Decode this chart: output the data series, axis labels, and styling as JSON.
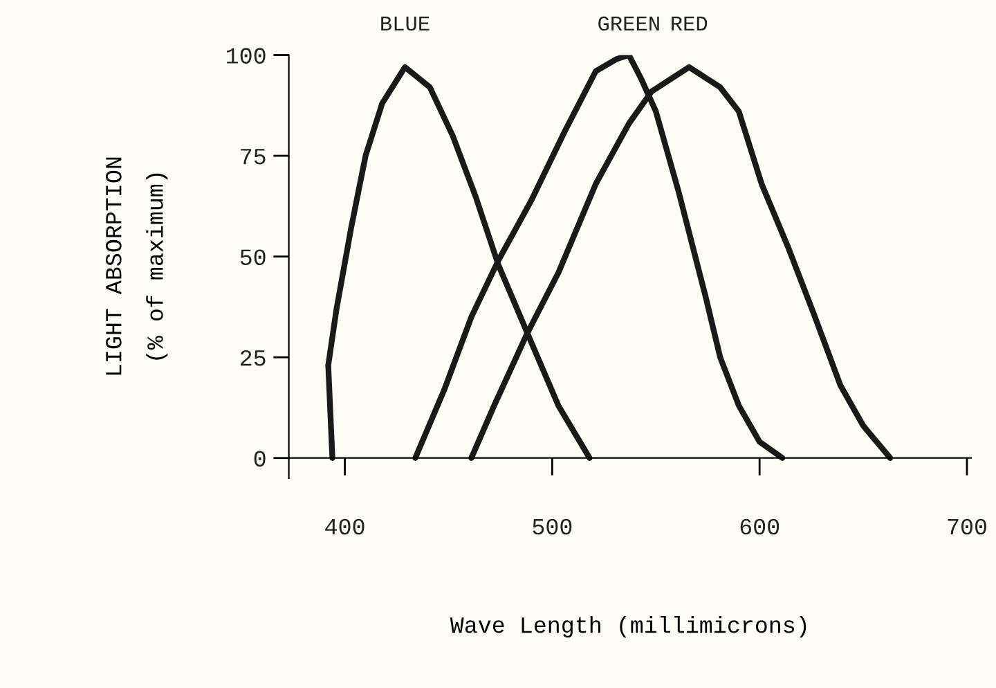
{
  "chart_data": {
    "type": "line",
    "xlabel": "Wave Length (millimicrons)",
    "ylabel": "LIGHT ABSORPTION\n(% of maximum)",
    "xlim": [
      373,
      702
    ],
    "ylim": [
      -5,
      100
    ],
    "xticks": [
      400,
      500,
      600,
      700
    ],
    "yticks": [
      0,
      25,
      50,
      75,
      100
    ],
    "legend": false,
    "marker": "none",
    "line_style": "solid",
    "series": [
      {
        "name": "BLUE",
        "color": "#1a1a1a",
        "x": [
          394,
          392,
          396,
          403,
          410,
          418,
          429,
          441,
          452,
          463,
          474,
          488,
          503,
          518
        ],
        "values": [
          0,
          23,
          37,
          57,
          75,
          88,
          97,
          92,
          80,
          65,
          48,
          31,
          13,
          0
        ]
      },
      {
        "name": "GREEN",
        "color": "#1a1a1a",
        "x": [
          434,
          448,
          461,
          474,
          490,
          506,
          521,
          531,
          537,
          543,
          550,
          561,
          574,
          581,
          590,
          600,
          611
        ],
        "values": [
          0,
          17,
          35,
          49,
          64,
          81,
          96,
          99,
          100,
          94,
          86,
          66,
          40,
          25,
          13,
          4,
          0
        ]
      },
      {
        "name": "RED",
        "color": "#1a1a1a",
        "x": [
          461,
          472,
          488,
          503,
          521,
          537,
          548,
          566,
          581,
          590,
          601,
          614,
          626,
          639,
          650,
          663
        ],
        "values": [
          0,
          13,
          31,
          46,
          68,
          83,
          91,
          97,
          92,
          86,
          68,
          52,
          36,
          18,
          8,
          0
        ]
      }
    ]
  }
}
